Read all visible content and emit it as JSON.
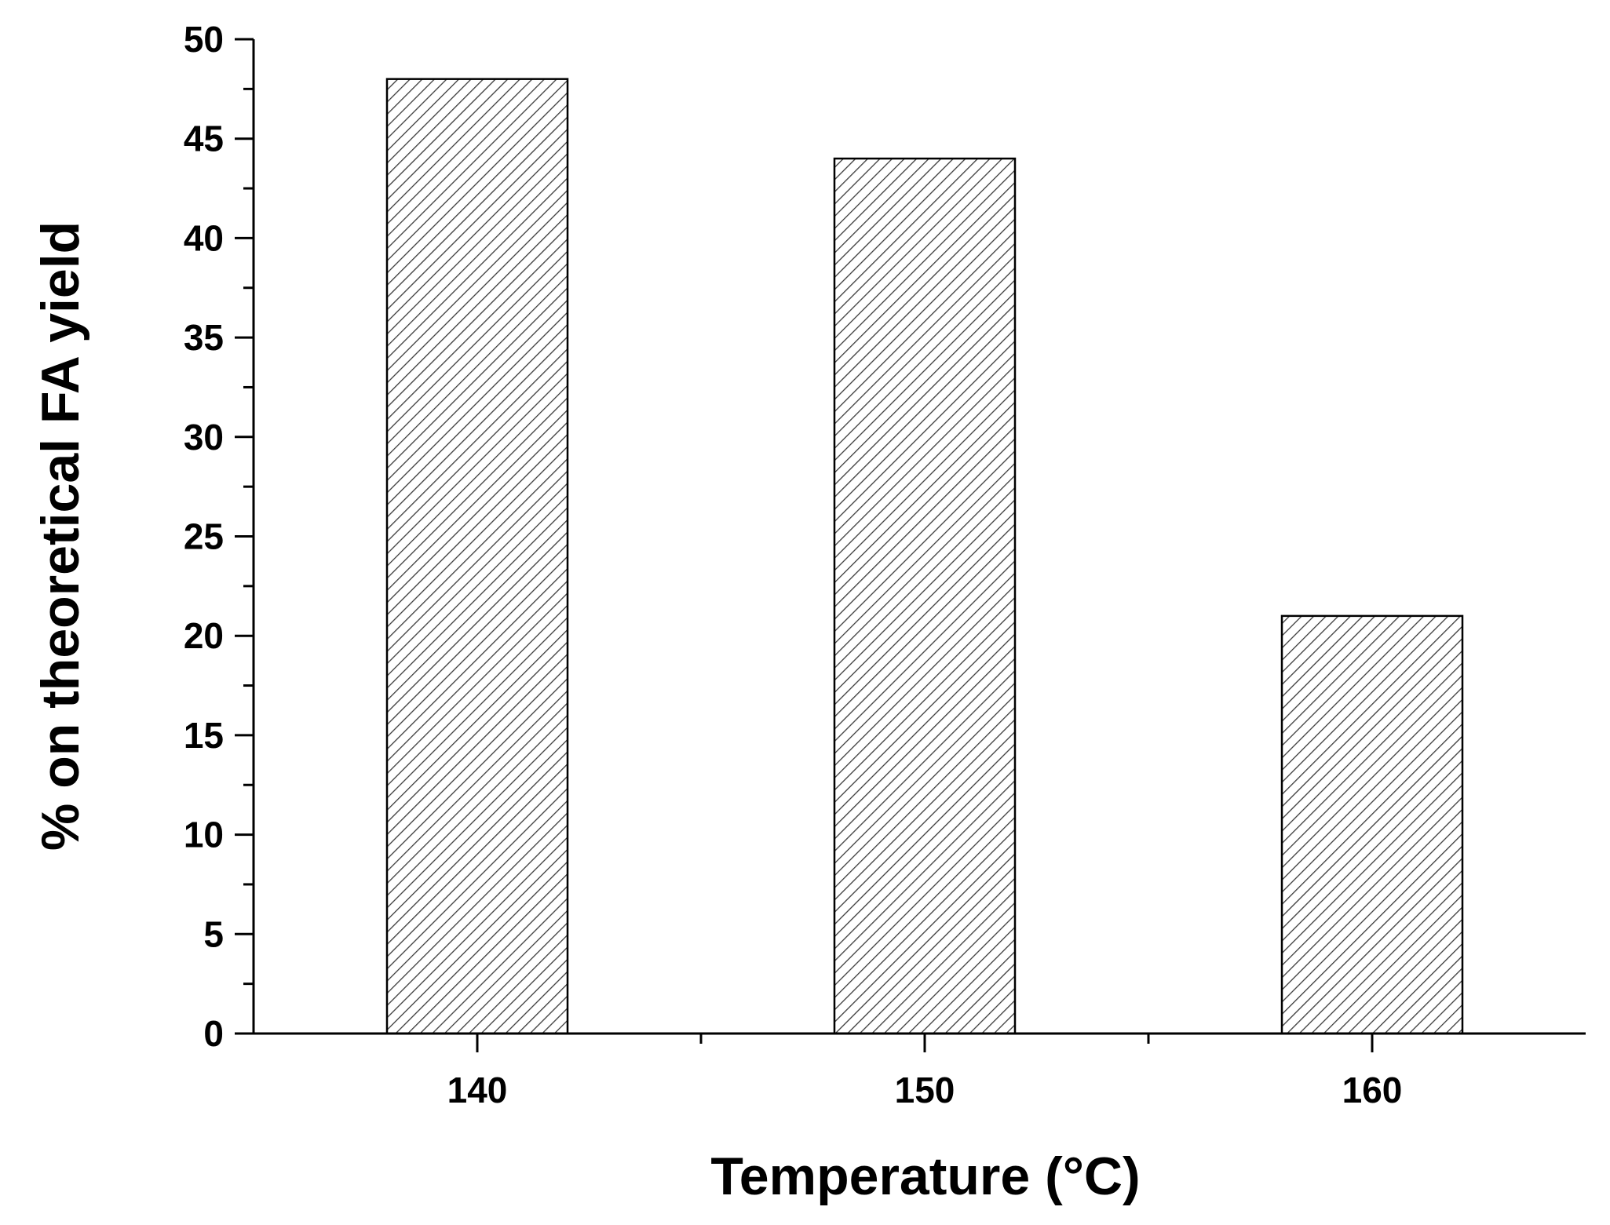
{
  "chart_data": {
    "type": "bar",
    "categories": [
      "140",
      "150",
      "160"
    ],
    "values": [
      48,
      44,
      21
    ],
    "xlabel": "Temperature (°C)",
    "ylabel": "% on theoretical FA yield",
    "ylim": [
      0,
      50
    ],
    "yticks": [
      "0",
      "5",
      "10",
      "15",
      "20",
      "25",
      "30",
      "35",
      "40",
      "45",
      "50"
    ],
    "grid": false,
    "legend": "none",
    "bar_fill": "hatched",
    "colors": {
      "bar_edge": "#000000",
      "hatch": "#3a3a3a",
      "axis": "#000000"
    }
  }
}
